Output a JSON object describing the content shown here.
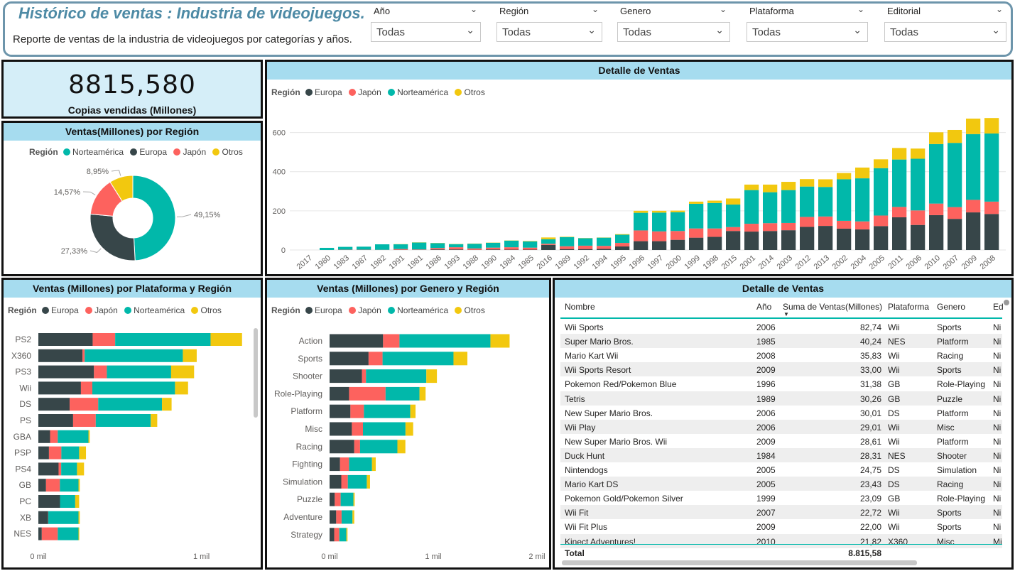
{
  "header": {
    "title": "Histórico de ventas : Industria de videojuegos.",
    "subtitle": "Reporte de ventas de la industria de videojuegos por categorías y años."
  },
  "filters": [
    {
      "label": "Año",
      "value": "Todas"
    },
    {
      "label": "Región",
      "value": "Todas"
    },
    {
      "label": "Genero",
      "value": "Todas"
    },
    {
      "label": "Plataforma",
      "value": "Todas"
    },
    {
      "label": "Editorial",
      "value": "Todas"
    }
  ],
  "kpi": {
    "value": "8815,580",
    "label": "Copias vendidas (Millones)"
  },
  "colors": {
    "Europa": "#374649",
    "Japón": "#fd625e",
    "Norteamérica": "#01b8aa",
    "Otros": "#f2c80f",
    "title_bg": "#a6dcef",
    "accent": "#4d8aa5"
  },
  "legend_title": "Región",
  "chart_data": [
    {
      "type": "pie",
      "title": "Ventas(Millones) por Región",
      "legend": [
        "Norteamérica",
        "Europa",
        "Japón",
        "Otros"
      ],
      "categories": [
        "Norteamérica",
        "Europa",
        "Japón",
        "Otros"
      ],
      "values": [
        49.15,
        27.33,
        14.57,
        8.95
      ],
      "labels": [
        "49,15%",
        "27,33%",
        "14,57%",
        "8,95%"
      ]
    },
    {
      "type": "bar",
      "title": "Detalle de Ventas",
      "legend": [
        "Europa",
        "Japón",
        "Norteamérica",
        "Otros"
      ],
      "categories": [
        "2017",
        "1980",
        "1983",
        "1987",
        "1982",
        "1991",
        "1981",
        "1986",
        "1993",
        "1988",
        "1990",
        "1984",
        "1985",
        "2016",
        "1989",
        "1992",
        "1994",
        "1995",
        "1996",
        "1997",
        "2000",
        "1999",
        "1998",
        "2015",
        "2001",
        "2014",
        "2003",
        "2012",
        "2013",
        "2002",
        "2004",
        "2005",
        "2011",
        "2006",
        "2010",
        "2007",
        "2009",
        "2008"
      ],
      "series": [
        {
          "name": "Europa",
          "values": [
            0,
            0,
            1,
            1,
            0,
            1,
            1,
            3,
            3,
            1,
            3,
            2,
            2,
            26,
            5,
            5,
            6,
            18,
            45,
            45,
            52,
            63,
            67,
            97,
            94,
            97,
            101,
            118,
            123,
            109,
            105,
            122,
            167,
            128,
            178,
            159,
            192,
            184
          ]
        },
        {
          "name": "Japón",
          "values": [
            0,
            0,
            1,
            1,
            1,
            4,
            2,
            7,
            11,
            7,
            9,
            12,
            10,
            6,
            14,
            17,
            15,
            18,
            55,
            50,
            45,
            47,
            43,
            20,
            40,
            40,
            37,
            51,
            48,
            40,
            41,
            54,
            53,
            74,
            59,
            60,
            64,
            63
          ]
        },
        {
          "name": "Norteamérica",
          "values": [
            0,
            11,
            14,
            15,
            28,
            24,
            35,
            25,
            16,
            24,
            25,
            34,
            32,
            23,
            47,
            38,
            42,
            42,
            90,
            96,
            96,
            126,
            130,
            115,
            172,
            158,
            168,
            155,
            151,
            212,
            220,
            242,
            242,
            264,
            304,
            328,
            336,
            348
          ]
        },
        {
          "name": "Otros",
          "values": [
            0,
            0,
            0,
            0,
            0,
            1,
            1,
            1,
            1,
            1,
            1,
            1,
            2,
            9,
            2,
            1,
            1,
            3,
            10,
            9,
            8,
            11,
            12,
            31,
            28,
            39,
            42,
            38,
            39,
            32,
            55,
            45,
            59,
            52,
            60,
            66,
            79,
            79
          ]
        }
      ],
      "yticks": [
        0,
        200,
        400,
        600
      ],
      "ylim": [
        0,
        700
      ]
    },
    {
      "type": "bar",
      "orientation": "horizontal",
      "title": "Ventas (Millones) por Plataforma y Región",
      "legend": [
        "Europa",
        "Japón",
        "Norteamérica",
        "Otros"
      ],
      "categories": [
        "PS2",
        "X360",
        "PS3",
        "Wii",
        "DS",
        "PS",
        "GBA",
        "PSP",
        "PS4",
        "GB",
        "PC",
        "XB",
        "NES"
      ],
      "series": [
        {
          "name": "Europa",
          "values": [
            333,
            271,
            341,
            261,
            192,
            213,
            72,
            65,
            124,
            47,
            133,
            60,
            21
          ]
        },
        {
          "name": "Japón",
          "values": [
            138,
            13,
            79,
            70,
            175,
            139,
            47,
            76,
            16,
            85,
            0,
            1,
            98
          ]
        },
        {
          "name": "Norteamérica",
          "values": [
            585,
            602,
            394,
            507,
            391,
            337,
            188,
            109,
            97,
            114,
            93,
            185,
            127
          ]
        },
        {
          "name": "Otros",
          "values": [
            193,
            85,
            141,
            80,
            59,
            40,
            8,
            42,
            43,
            8,
            24,
            8,
            5
          ]
        }
      ],
      "xticks": [
        "0 mil",
        "1 mil"
      ],
      "xlim": [
        0,
        1250
      ]
    },
    {
      "type": "bar",
      "orientation": "horizontal",
      "title": "Ventas (Millones) por Genero y Región",
      "legend": [
        "Europa",
        "Japón",
        "Norteamérica",
        "Otros"
      ],
      "categories": [
        "Action",
        "Sports",
        "Shooter",
        "Role-Playing",
        "Platform",
        "Misc",
        "Racing",
        "Fighting",
        "Simulation",
        "Puzzle",
        "Adventure",
        "Strategy"
      ],
      "series": [
        {
          "name": "Europa",
          "values": [
            516,
            376,
            313,
            188,
            201,
            215,
            238,
            101,
            113,
            50,
            64,
            45
          ]
        },
        {
          "name": "Japón",
          "values": [
            158,
            135,
            38,
            352,
            130,
            107,
            56,
            87,
            63,
            57,
            52,
            49
          ]
        },
        {
          "name": "Norteamérica",
          "values": [
            877,
            684,
            582,
            327,
            447,
            410,
            360,
            221,
            183,
            123,
            105,
            68
          ]
        },
        {
          "name": "Otros",
          "values": [
            185,
            134,
            102,
            59,
            51,
            74,
            77,
            36,
            31,
            12,
            17,
            11
          ]
        }
      ],
      "xticks": [
        "0 mil",
        "1 mil",
        "2 mil"
      ],
      "xlim": [
        0,
        2000
      ]
    },
    {
      "type": "table",
      "title": "Detalle de Ventas",
      "columns": [
        "Nombre",
        "Año",
        "Suma de Ventas(Millones)",
        "Plataforma",
        "Genero",
        "Ed"
      ],
      "rows": [
        [
          "Wii Sports",
          "2006",
          "82,74",
          "Wii",
          "Sports",
          "Ni"
        ],
        [
          "Super Mario Bros.",
          "1985",
          "40,24",
          "NES",
          "Platform",
          "Ni"
        ],
        [
          "Mario Kart Wii",
          "2008",
          "35,83",
          "Wii",
          "Racing",
          "Ni"
        ],
        [
          "Wii Sports Resort",
          "2009",
          "33,00",
          "Wii",
          "Sports",
          "Ni"
        ],
        [
          "Pokemon Red/Pokemon Blue",
          "1996",
          "31,38",
          "GB",
          "Role-Playing",
          "Ni"
        ],
        [
          "Tetris",
          "1989",
          "30,26",
          "GB",
          "Puzzle",
          "Ni"
        ],
        [
          "New Super Mario Bros.",
          "2006",
          "30,01",
          "DS",
          "Platform",
          "Ni"
        ],
        [
          "Wii Play",
          "2006",
          "29,01",
          "Wii",
          "Misc",
          "Ni"
        ],
        [
          "New Super Mario Bros. Wii",
          "2009",
          "28,61",
          "Wii",
          "Platform",
          "Ni"
        ],
        [
          "Duck Hunt",
          "1984",
          "28,31",
          "NES",
          "Shooter",
          "Ni"
        ],
        [
          "Nintendogs",
          "2005",
          "24,75",
          "DS",
          "Simulation",
          "Ni"
        ],
        [
          "Mario Kart DS",
          "2005",
          "23,43",
          "DS",
          "Racing",
          "Ni"
        ],
        [
          "Pokemon Gold/Pokemon Silver",
          "1999",
          "23,09",
          "GB",
          "Role-Playing",
          "Ni"
        ],
        [
          "Wii Fit",
          "2007",
          "22,72",
          "Wii",
          "Sports",
          "Ni"
        ],
        [
          "Wii Fit Plus",
          "2009",
          "22,00",
          "Wii",
          "Sports",
          "Ni"
        ],
        [
          "Kinect Adventures!",
          "2010",
          "21,82",
          "X360",
          "Misc",
          "Mi"
        ]
      ],
      "total_label": "Total",
      "total_value": "8.815,58"
    }
  ]
}
